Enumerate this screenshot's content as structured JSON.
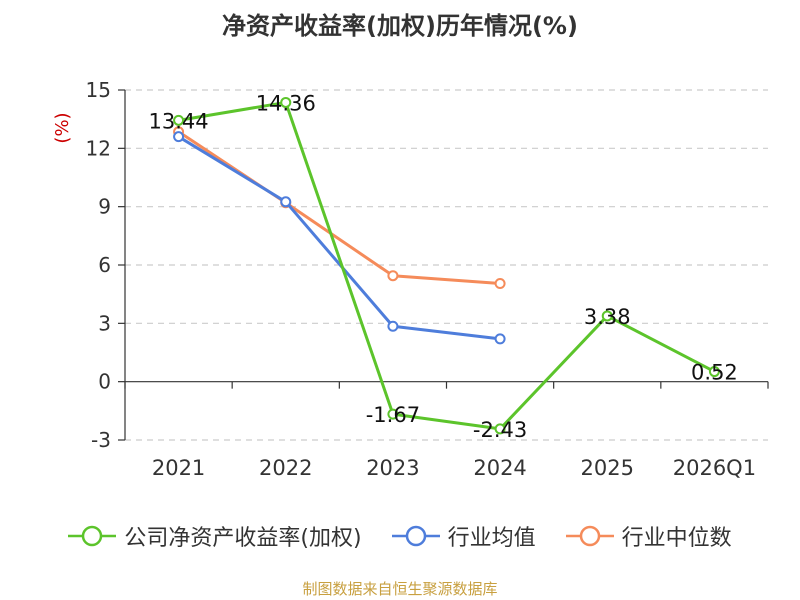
{
  "chart_data": {
    "type": "line",
    "title": "净资产收益率(加权)历年情况(%)",
    "ylabel": "(%)",
    "categories": [
      "2021",
      "2022",
      "2023",
      "2024",
      "2025",
      "2026Q1"
    ],
    "ylim": [
      -3,
      15
    ],
    "yticks": [
      -3,
      0,
      3,
      6,
      9,
      12,
      15
    ],
    "grid": true,
    "legend_position": "bottom",
    "series": [
      {
        "name": "公司净资产收益率(加权)",
        "color": "#5cc42b",
        "values": [
          13.44,
          14.36,
          -1.67,
          -2.43,
          3.38,
          0.52
        ],
        "labels": [
          "13.44",
          "14.36",
          "-1.67",
          "-2.43",
          "3.38",
          "0.52"
        ]
      },
      {
        "name": "行业均值",
        "color": "#4e7ddb",
        "values": [
          12.6,
          9.25,
          2.85,
          2.2,
          null,
          null
        ]
      },
      {
        "name": "行业中位数",
        "color": "#f58b5a",
        "values": [
          12.85,
          9.2,
          5.45,
          5.05,
          null,
          null
        ]
      }
    ]
  },
  "source": "制图数据来自恒生聚源数据库"
}
